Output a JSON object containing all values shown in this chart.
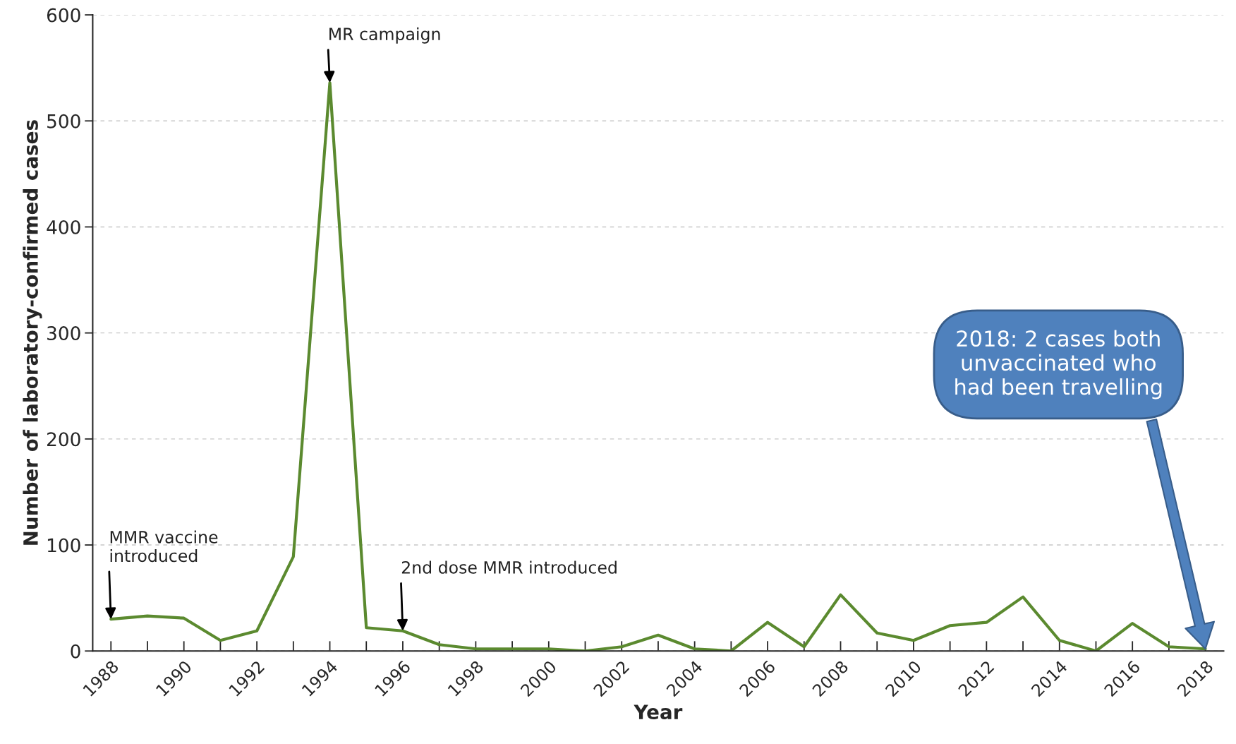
{
  "chart_data": {
    "type": "line",
    "xlabel": "Year",
    "ylabel": "Number of laboratory-confirmed cases",
    "x": [
      1988,
      1989,
      1990,
      1991,
      1992,
      1993,
      1994,
      1995,
      1996,
      1997,
      1998,
      1999,
      2000,
      2001,
      2002,
      2003,
      2004,
      2005,
      2006,
      2007,
      2008,
      2009,
      2010,
      2011,
      2012,
      2013,
      2014,
      2015,
      2016,
      2017,
      2018
    ],
    "series": [
      {
        "color": "#5b8a2f",
        "values": [
          30,
          33,
          31,
          10,
          19,
          89,
          536,
          22,
          19,
          6,
          2,
          2,
          2,
          0,
          4,
          15,
          2,
          0,
          27,
          4,
          53,
          17,
          10,
          24,
          27,
          51,
          10,
          0,
          26,
          4,
          2
        ]
      }
    ],
    "xlim": [
      1987.5,
      2018.5
    ],
    "ylim": [
      0,
      600
    ],
    "xticks": [
      1988,
      {
        "value": 1989,
        "label": null
      },
      1990,
      {
        "value": 1991,
        "label": null
      },
      1992,
      {
        "value": 1993,
        "label": null
      },
      1994,
      {
        "value": 1995,
        "label": null
      },
      1996,
      {
        "value": 1997,
        "label": null
      },
      1998,
      {
        "value": 1999,
        "label": null
      },
      2000,
      {
        "value": 2001,
        "label": null
      },
      2002,
      {
        "value": 2003,
        "label": null
      },
      2004,
      {
        "value": 2005,
        "label": null
      },
      2006,
      {
        "value": 2007,
        "label": null
      },
      2008,
      {
        "value": 2009,
        "label": null
      },
      2010,
      {
        "value": 2011,
        "label": null
      },
      2012,
      {
        "value": 2013,
        "label": null
      },
      2014,
      {
        "value": 2015,
        "label": null
      },
      2016,
      {
        "value": 2017,
        "label": null
      },
      2018
    ],
    "yticks": [
      0,
      100,
      200,
      300,
      400,
      500,
      600
    ],
    "grid": "y",
    "marker": "none",
    "line_style": "solid",
    "annotations": [
      {
        "text": "MR campaign",
        "x": 1994,
        "y": 536
      },
      {
        "text": "MMR vaccine\nintroduced",
        "x": 1988,
        "y": 30
      },
      {
        "text": "2nd dose MMR introduced",
        "x": 1996,
        "y": 19
      },
      "2018: 2 cases both\nunvaccinated who\nhad been travelling"
    ]
  }
}
